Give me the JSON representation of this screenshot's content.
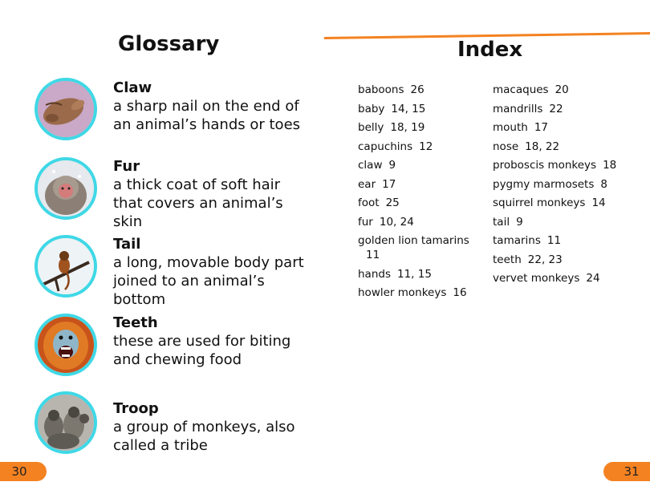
{
  "glossary": {
    "title": "Glossary",
    "entries": [
      {
        "term": "Claw",
        "definition": "a sharp nail on the end of an animal’s hands or toes",
        "icon": "monkey-claw-photo"
      },
      {
        "term": "Fur",
        "definition": "a thick coat of soft hair that covers an animal’s skin",
        "icon": "snow-monkey-photo"
      },
      {
        "term": "Tail",
        "definition": "a long, movable body part joined to an animal’s bottom",
        "icon": "monkey-on-branch-photo"
      },
      {
        "term": "Teeth",
        "definition": "these are used for biting and chewing food",
        "icon": "snub-nosed-monkey-teeth-photo"
      },
      {
        "term": "Troop",
        "definition": "a group of monkeys, also called a tribe",
        "icon": "monkey-troop-photo"
      }
    ]
  },
  "index": {
    "title": "Index",
    "left": [
      {
        "term": "baboons",
        "pages": "26"
      },
      {
        "term": "baby",
        "pages": "14, 15"
      },
      {
        "term": "belly",
        "pages": "18, 19"
      },
      {
        "term": "capuchins",
        "pages": "12"
      },
      {
        "term": "claw",
        "pages": "9"
      },
      {
        "term": "ear",
        "pages": "17"
      },
      {
        "term": "foot",
        "pages": "25"
      },
      {
        "term": "fur",
        "pages": "10, 24"
      },
      {
        "term": "golden lion tamarins",
        "pages": "11"
      },
      {
        "term": "hands",
        "pages": "11, 15"
      },
      {
        "term": "howler monkeys",
        "pages": "16"
      }
    ],
    "right": [
      {
        "term": "macaques",
        "pages": "20"
      },
      {
        "term": "mandrills",
        "pages": "22"
      },
      {
        "term": "mouth",
        "pages": "17"
      },
      {
        "term": "nose",
        "pages": "18, 22"
      },
      {
        "term": "proboscis monkeys",
        "pages": "18"
      },
      {
        "term": "pygmy marmosets",
        "pages": "8"
      },
      {
        "term": "squirrel monkeys",
        "pages": "14"
      },
      {
        "term": "tail",
        "pages": "9"
      },
      {
        "term": "tamarins",
        "pages": "11"
      },
      {
        "term": "teeth",
        "pages": "22, 23"
      },
      {
        "term": "vervet monkeys",
        "pages": "24"
      }
    ]
  },
  "page_numbers": {
    "left": "30",
    "right": "31"
  },
  "colors": {
    "accent": "#f48221",
    "photo_ring": "#3fd8e6"
  }
}
